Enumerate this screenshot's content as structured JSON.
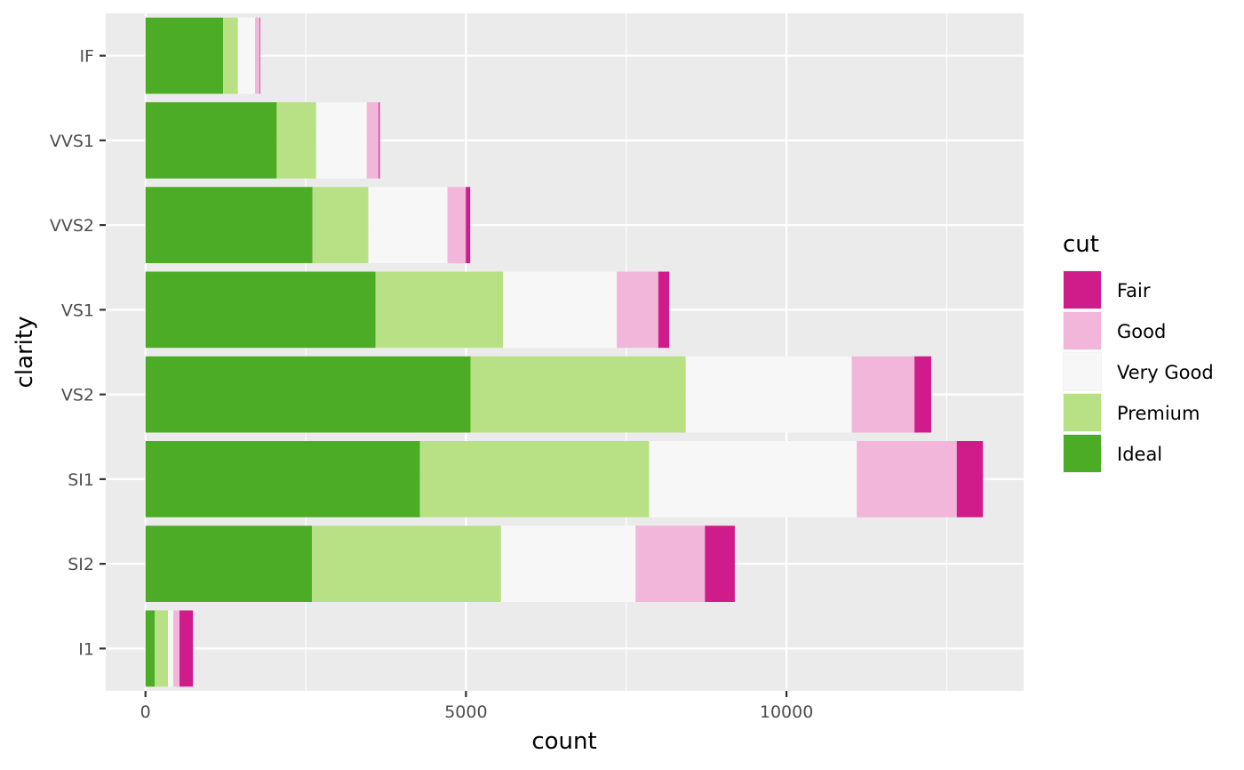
{
  "chart_data": {
    "type": "bar",
    "orientation": "horizontal",
    "stacked": true,
    "xlabel": "count",
    "ylabel": "clarity",
    "xlim": [
      -620,
      13700
    ],
    "x_ticks": [
      0,
      5000,
      10000
    ],
    "categories": [
      "IF",
      "VVS1",
      "VVS2",
      "VS1",
      "VS2",
      "SI1",
      "SI2",
      "I1"
    ],
    "series": [
      {
        "name": "Ideal",
        "color": "#4DAC26",
        "values": [
          1212,
          2047,
          2606,
          3589,
          5071,
          4282,
          2598,
          146
        ]
      },
      {
        "name": "Premium",
        "color": "#B8E186",
        "values": [
          230,
          616,
          870,
          1989,
          3357,
          3575,
          2949,
          205
        ]
      },
      {
        "name": "Very Good",
        "color": "#F7F7F7",
        "values": [
          268,
          789,
          1235,
          1775,
          2591,
          3240,
          2100,
          84
        ]
      },
      {
        "name": "Good",
        "color": "#F1B6DA",
        "values": [
          71,
          186,
          286,
          648,
          978,
          1560,
          1081,
          96
        ]
      },
      {
        "name": "Fair",
        "color": "#D01C8B",
        "values": [
          9,
          17,
          69,
          170,
          261,
          408,
          466,
          210
        ]
      }
    ],
    "legend": {
      "title": "cut",
      "position": "right",
      "order": [
        "Fair",
        "Good",
        "Very Good",
        "Premium",
        "Ideal"
      ]
    },
    "grid": true,
    "panel_background": "#EBEBEB"
  }
}
